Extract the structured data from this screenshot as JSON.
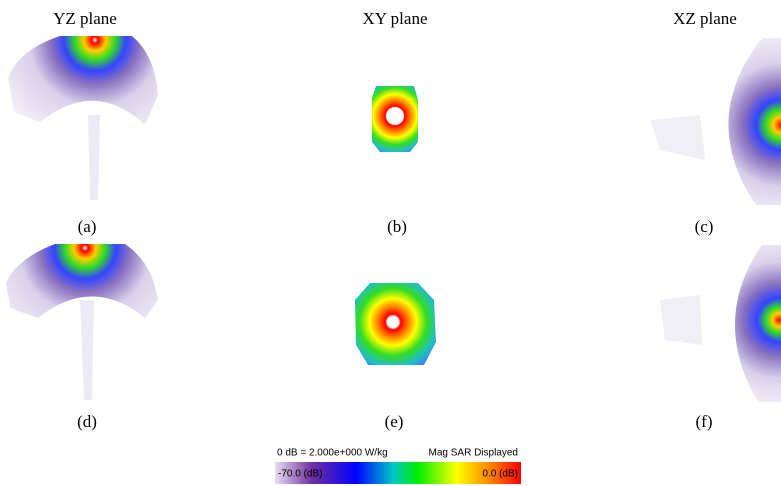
{
  "columns": [
    "YZ plane",
    "XY plane",
    "XZ plane"
  ],
  "panels": [
    "(a)",
    "(b)",
    "(c)",
    "(d)",
    "(e)",
    "(f)"
  ],
  "colorbar": {
    "reference": "0 dB = 2.000e+000 W/kg",
    "mode": "Mag SAR Displayed",
    "min_label": "-70.0 (dB)",
    "max_label": "0.0 (dB)"
  }
}
